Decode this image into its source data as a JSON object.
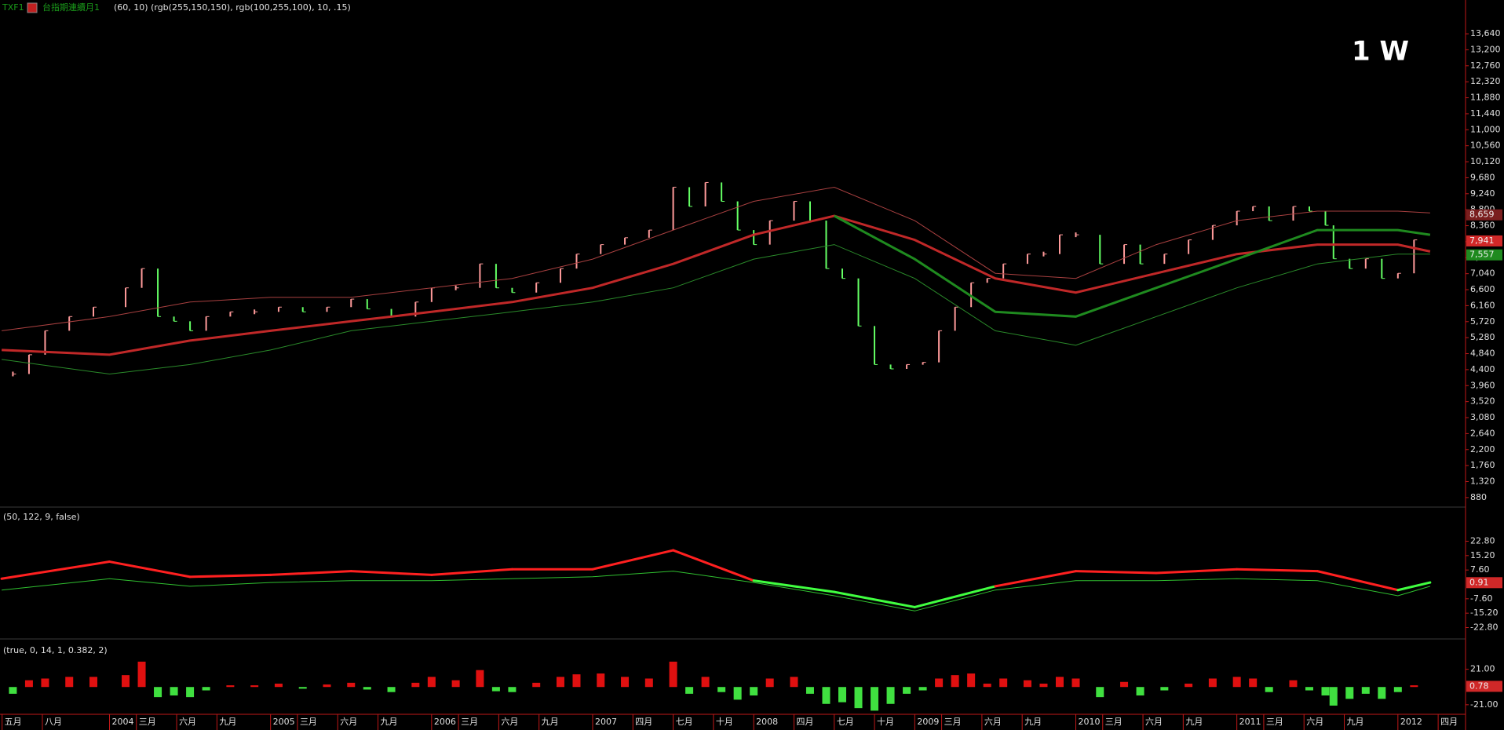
{
  "header": {
    "symbol": "TXF1",
    "name": "台指期連續月1",
    "params": "(60,  10)  (rgb(255,150,150),  rgb(100,255,100),  10,  .15)",
    "timeframe": "1 W"
  },
  "chart_data": [
    {
      "type": "stock",
      "xlim": [
        2003.32,
        2012.42
      ],
      "ylim": [
        640,
        14570
      ],
      "x": [
        2003.4,
        2003.5,
        2003.6,
        2003.75,
        2003.9,
        2004.1,
        2004.2,
        2004.3,
        2004.4,
        2004.5,
        2004.6,
        2004.75,
        2004.9,
        2005.05,
        2005.2,
        2005.35,
        2005.5,
        2005.6,
        2005.75,
        2005.9,
        2006.0,
        2006.15,
        2006.3,
        2006.4,
        2006.5,
        2006.65,
        2006.8,
        2006.9,
        2007.05,
        2007.2,
        2007.35,
        2007.5,
        2007.6,
        2007.7,
        2007.8,
        2007.9,
        2008.0,
        2008.1,
        2008.25,
        2008.35,
        2008.45,
        2008.55,
        2008.65,
        2008.75,
        2008.85,
        2008.95,
        2009.05,
        2009.15,
        2009.25,
        2009.35,
        2009.45,
        2009.55,
        2009.7,
        2009.8,
        2009.9,
        2010.0,
        2010.15,
        2010.3,
        2010.4,
        2010.55,
        2010.7,
        2010.85,
        2011.0,
        2011.1,
        2011.2,
        2011.35,
        2011.45,
        2011.55,
        2011.6,
        2011.7,
        2011.8,
        2011.9,
        2012.0,
        2012.1
      ],
      "values": [
        4280,
        4810,
        5470,
        5860,
        6120,
        6650,
        7180,
        5860,
        5730,
        5470,
        5860,
        5990,
        5990,
        6120,
        5990,
        6120,
        6340,
        6070,
        5860,
        6260,
        6650,
        6650,
        7310,
        6650,
        6520,
        6790,
        7180,
        7580,
        7840,
        8030,
        8240,
        9420,
        8890,
        9550,
        9030,
        8240,
        7840,
        8500,
        9030,
        8500,
        7180,
        6910,
        5600,
        4540,
        4420,
        4540,
        4600,
        5470,
        6120,
        6790,
        6910,
        7310,
        7580,
        7580,
        8110,
        8110,
        7310,
        7840,
        7310,
        7580,
        7970,
        8370,
        8760,
        8890,
        8500,
        8890,
        8760,
        8370,
        7450,
        7180,
        7450,
        6910,
        7050,
        7970
      ],
      "up_color": "#ff9a9a",
      "down_color": "#64ff64",
      "overlay": {
        "x": [
          2003.33,
          2004,
          2004.5,
          2005,
          2005.5,
          2006,
          2006.5,
          2007,
          2007.5,
          2008,
          2008.5,
          2009,
          2009.5,
          2010,
          2010.5,
          2011,
          2011.5,
          2012,
          2012.2
        ],
        "series": [
          {
            "color": "#a84040",
            "line_width": 1,
            "values": [
              5470,
              5860,
              6260,
              6390,
              6390,
              6650,
              6910,
              7440,
              8240,
              9030,
              9420,
              8500,
              7050,
              6910,
              7840,
              8500,
              8760,
              8760,
              8710
            ]
          },
          {
            "color": "#c02828",
            "line_width": 3,
            "values": [
              4940,
              4810,
              5200,
              5470,
              5730,
              5990,
              6260,
              6650,
              7310,
              8110,
              8630,
              7970,
              6910,
              6520,
              7050,
              7580,
              7840,
              7840,
              7650
            ]
          },
          {
            "color": "#1f8a1f",
            "line_width": 3,
            "values": [
              null,
              null,
              null,
              null,
              null,
              null,
              null,
              null,
              null,
              null,
              8630,
              7440,
              5990,
              5860,
              6650,
              7440,
              8240,
              8240,
              8110
            ]
          },
          {
            "color": "#2a8a2a",
            "line_width": 1,
            "values": [
              4680,
              4280,
              4540,
              4940,
              5470,
              5730,
              5990,
              6260,
              6650,
              7440,
              7840,
              6910,
              5470,
              5070,
              5860,
              6650,
              7310,
              7580,
              7580
            ]
          }
        ]
      },
      "yticks": [
        {
          "value": 880,
          "label": "880"
        },
        {
          "value": 1320,
          "label": "1,320"
        },
        {
          "value": 1760,
          "label": "1,760"
        },
        {
          "value": 2200,
          "label": "2,200"
        },
        {
          "value": 2640,
          "label": "2,640"
        },
        {
          "value": 3080,
          "label": "3,080"
        },
        {
          "value": 3520,
          "label": "3,520"
        },
        {
          "value": 3960,
          "label": "3,960"
        },
        {
          "value": 4400,
          "label": "4,400"
        },
        {
          "value": 4840,
          "label": "4,840"
        },
        {
          "value": 5280,
          "label": "5,280"
        },
        {
          "value": 5720,
          "label": "5,720"
        },
        {
          "value": 6160,
          "label": "6,160"
        },
        {
          "value": 6600,
          "label": "6,600"
        },
        {
          "value": 7040,
          "label": "7,040"
        },
        {
          "value": 7480,
          "label": "7,480"
        },
        {
          "value": 7920,
          "label": "7,920"
        },
        {
          "value": 8360,
          "label": "8,360"
        },
        {
          "value": 8800,
          "label": "8,800"
        },
        {
          "value": 9240,
          "label": "9,240"
        },
        {
          "value": 9680,
          "label": "9,680"
        },
        {
          "value": 10120,
          "label": "10,120"
        },
        {
          "value": 10560,
          "label": "10,560"
        },
        {
          "value": 11000,
          "label": "11,000"
        },
        {
          "value": 11440,
          "label": "11,440"
        },
        {
          "value": 11880,
          "label": "11,880"
        },
        {
          "value": 12320,
          "label": "12,320"
        },
        {
          "value": 12760,
          "label": "12,760"
        },
        {
          "value": 13200,
          "label": "13,200"
        },
        {
          "value": 13640,
          "label": "13,640"
        }
      ],
      "badges": [
        {
          "value": 8659,
          "label": "8,659",
          "color": "#7a1e1e"
        },
        {
          "value": 7941,
          "label": "7,941",
          "color": "#d02828"
        },
        {
          "value": 7557,
          "label": "7,557",
          "color": "#1f8a1f"
        }
      ]
    },
    {
      "type": "line",
      "title": "(50,  122,  9,  false)",
      "xlim": [
        2003.32,
        2012.42
      ],
      "ylim": [
        -28.4,
        40
      ],
      "x": [
        2003.33,
        2004,
        2004.5,
        2005,
        2005.5,
        2006,
        2006.5,
        2007,
        2007.5,
        2008,
        2008.5,
        2009,
        2009.5,
        2010,
        2010.5,
        2011,
        2011.5,
        2012,
        2012.2
      ],
      "series": [
        {
          "color": "#ff2020",
          "negative_color": "#40ff40",
          "line_width": 3,
          "values": [
            3,
            12,
            4,
            5,
            7,
            5,
            8,
            8,
            18,
            2,
            -4,
            -12,
            -1,
            7,
            6,
            8,
            7,
            -3,
            1
          ]
        },
        {
          "color": "#30c030",
          "line_width": 1,
          "values": [
            -3,
            3,
            -1,
            1,
            2,
            2,
            3,
            4,
            7,
            1,
            -6,
            -14,
            -3,
            2,
            2,
            3,
            2,
            -6,
            -1
          ]
        }
      ],
      "yticks": [
        {
          "value": 22.8,
          "label": "22.80"
        },
        {
          "value": 15.2,
          "label": "15.20"
        },
        {
          "value": 7.6,
          "label": "7.60"
        },
        {
          "value": -7.6,
          "label": "-7.60"
        },
        {
          "value": -15.2,
          "label": "-15.20"
        },
        {
          "value": -22.8,
          "label": "-22.80"
        }
      ],
      "badges": [
        {
          "value": 0.91,
          "label": "0.91",
          "color": "#d02828"
        }
      ]
    },
    {
      "type": "bar",
      "title": "(true,  0,  14,  1,  0.382,  2)",
      "xlim": [
        2003.32,
        2012.42
      ],
      "ylim": [
        -32.3,
        55
      ],
      "x": [
        2003.4,
        2003.5,
        2003.6,
        2003.75,
        2003.9,
        2004.1,
        2004.2,
        2004.3,
        2004.4,
        2004.5,
        2004.6,
        2004.75,
        2004.9,
        2005.05,
        2005.2,
        2005.35,
        2005.5,
        2005.6,
        2005.75,
        2005.9,
        2006.0,
        2006.15,
        2006.3,
        2006.4,
        2006.5,
        2006.65,
        2006.8,
        2006.9,
        2007.05,
        2007.2,
        2007.35,
        2007.5,
        2007.6,
        2007.7,
        2007.8,
        2007.9,
        2008.0,
        2008.1,
        2008.25,
        2008.35,
        2008.45,
        2008.55,
        2008.65,
        2008.75,
        2008.85,
        2008.95,
        2009.05,
        2009.15,
        2009.25,
        2009.35,
        2009.45,
        2009.55,
        2009.7,
        2009.8,
        2009.9,
        2010.0,
        2010.15,
        2010.3,
        2010.4,
        2010.55,
        2010.7,
        2010.85,
        2011.0,
        2011.1,
        2011.2,
        2011.35,
        2011.45,
        2011.55,
        2011.6,
        2011.7,
        2011.8,
        2011.9,
        2012.0,
        2012.1
      ],
      "values": [
        -8,
        8,
        10,
        12,
        12,
        14,
        30,
        -12,
        -10,
        -12,
        -4,
        2,
        2,
        4,
        -2,
        3,
        5,
        -3,
        -6,
        5,
        12,
        8,
        20,
        -5,
        -6,
        5,
        12,
        15,
        16,
        12,
        10,
        30,
        -8,
        12,
        -6,
        -15,
        -10,
        10,
        12,
        -8,
        -20,
        -18,
        -25,
        -28,
        -20,
        -8,
        -4,
        10,
        14,
        16,
        4,
        10,
        8,
        4,
        12,
        10,
        -12,
        6,
        -10,
        -4,
        4,
        10,
        12,
        10,
        -6,
        8,
        -4,
        -10,
        -22,
        -14,
        -8,
        -14,
        -6,
        2
      ],
      "color": "#e01010",
      "negative_color": "#40e040",
      "yticks": [
        {
          "value": 21,
          "label": "21.00"
        },
        {
          "value": -21,
          "label": "-21.00"
        }
      ],
      "badges": [
        {
          "value": 0.78,
          "label": "0.78",
          "color": "#d02828"
        }
      ],
      "xticks": [
        {
          "value": 2003.333,
          "label": "五月"
        },
        {
          "value": 2003.583,
          "label": "八月"
        },
        2004,
        {
          "value": 2004.167,
          "label": "三月"
        },
        {
          "value": 2004.417,
          "label": "六月"
        },
        {
          "value": 2004.667,
          "label": "九月"
        },
        2005,
        {
          "value": 2005.167,
          "label": "三月"
        },
        {
          "value": 2005.417,
          "label": "六月"
        },
        {
          "value": 2005.667,
          "label": "九月"
        },
        2006,
        {
          "value": 2006.167,
          "label": "三月"
        },
        {
          "value": 2006.417,
          "label": "六月"
        },
        {
          "value": 2006.667,
          "label": "九月"
        },
        2007,
        {
          "value": 2007.25,
          "label": "四月"
        },
        {
          "value": 2007.5,
          "label": "七月"
        },
        {
          "value": 2007.75,
          "label": "十月"
        },
        2008,
        {
          "value": 2008.25,
          "label": "四月"
        },
        {
          "value": 2008.5,
          "label": "七月"
        },
        {
          "value": 2008.75,
          "label": "十月"
        },
        2009,
        {
          "value": 2009.167,
          "label": "三月"
        },
        {
          "value": 2009.417,
          "label": "六月"
        },
        {
          "value": 2009.667,
          "label": "九月"
        },
        2010,
        {
          "value": 2010.167,
          "label": "三月"
        },
        {
          "value": 2010.417,
          "label": "六月"
        },
        {
          "value": 2010.667,
          "label": "九月"
        },
        2011,
        {
          "value": 2011.167,
          "label": "三月"
        },
        {
          "value": 2011.417,
          "label": "六月"
        },
        {
          "value": 2011.667,
          "label": "九月"
        },
        2012,
        {
          "value": 2012.25,
          "label": "四月"
        }
      ]
    }
  ]
}
